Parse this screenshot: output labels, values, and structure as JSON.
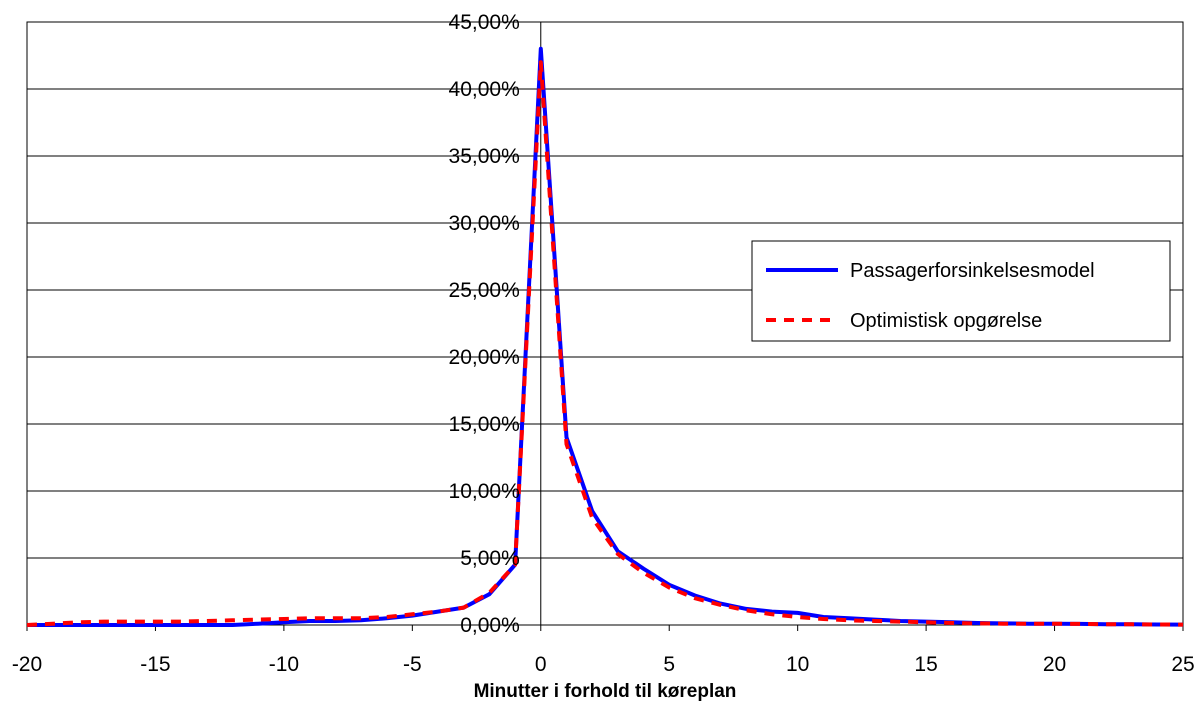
{
  "chart_data": {
    "type": "line",
    "title": "",
    "xlabel": "Minutter i forhold til køreplan",
    "ylabel": "",
    "xlim": [
      -20,
      25
    ],
    "ylim": [
      0,
      45
    ],
    "x_ticks": [
      -20,
      -15,
      -10,
      -5,
      0,
      5,
      10,
      15,
      20,
      25
    ],
    "x_tick_labels": [
      "-20",
      "-15",
      "-10",
      "-5",
      "0",
      "5",
      "10",
      "15",
      "20",
      "25"
    ],
    "y_ticks": [
      0,
      5,
      10,
      15,
      20,
      25,
      30,
      35,
      40,
      45
    ],
    "y_tick_labels": [
      "0,00%",
      "5,00%",
      "10,00%",
      "15,00%",
      "20,00%",
      "25,00%",
      "30,00%",
      "35,00%",
      "40,00%",
      "45,00%"
    ],
    "y_unit": "%",
    "grid": "horizontal",
    "legend_position": "right",
    "series": [
      {
        "name": "Passagerforsinkelsesmodel",
        "color": "#0000ff",
        "style": "solid",
        "x": [
          -20,
          -19,
          -18,
          -17,
          -16,
          -15,
          -14,
          -13,
          -12,
          -11,
          -10,
          -9,
          -8,
          -7,
          -6,
          -5,
          -4,
          -3,
          -2,
          -1,
          0,
          1,
          2,
          3,
          4,
          5,
          6,
          7,
          8,
          9,
          10,
          11,
          12,
          13,
          14,
          15,
          16,
          17,
          18,
          19,
          20,
          21,
          22,
          23,
          24,
          25
        ],
        "values": [
          0,
          0,
          0,
          0,
          0,
          0,
          0,
          0,
          0,
          0.1,
          0.2,
          0.3,
          0.3,
          0.35,
          0.5,
          0.7,
          1.0,
          1.3,
          2.3,
          4.5,
          43,
          14,
          8.5,
          5.5,
          4.2,
          3.0,
          2.2,
          1.6,
          1.2,
          1.0,
          0.9,
          0.6,
          0.5,
          0.4,
          0.3,
          0.25,
          0.2,
          0.15,
          0.12,
          0.1,
          0.1,
          0.08,
          0.06,
          0.05,
          0.04,
          0.03
        ]
      },
      {
        "name": "Optimistisk opgørelse",
        "color": "#ff0000",
        "style": "dashed",
        "x": [
          -20,
          -19,
          -18,
          -17,
          -16,
          -15,
          -14,
          -13,
          -12,
          -11,
          -10,
          -9,
          -8,
          -7,
          -6,
          -5,
          -4,
          -3,
          -2,
          -1,
          0,
          1,
          2,
          3,
          4,
          5,
          6,
          7,
          8,
          9,
          10,
          11,
          12,
          13,
          14,
          15,
          16,
          17,
          18,
          19,
          20,
          21,
          22,
          23,
          24,
          25
        ],
        "values": [
          0,
          0.1,
          0.2,
          0.25,
          0.25,
          0.25,
          0.25,
          0.3,
          0.35,
          0.4,
          0.45,
          0.5,
          0.5,
          0.5,
          0.6,
          0.8,
          1.0,
          1.3,
          2.4,
          4.5,
          42,
          13.5,
          8.0,
          5.3,
          3.9,
          2.8,
          2.0,
          1.5,
          1.1,
          0.8,
          0.6,
          0.45,
          0.35,
          0.3,
          0.25,
          0.2,
          0.15,
          0.12,
          0.1,
          0.1,
          0.1,
          0.08,
          0.06,
          0.05,
          0.04,
          0.03
        ]
      }
    ]
  }
}
